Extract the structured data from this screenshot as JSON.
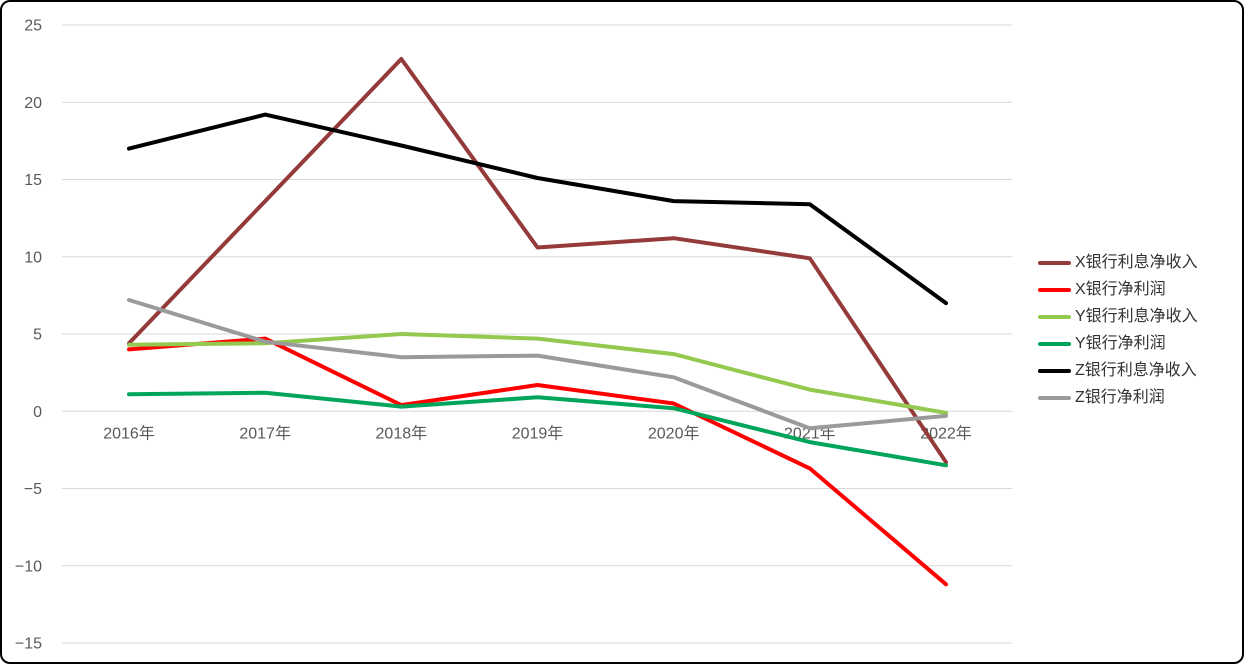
{
  "chart_data": {
    "type": "line",
    "title": "",
    "xlabel": "",
    "ylabel": "",
    "categories": [
      "2016年",
      "2017年",
      "2018年",
      "2019年",
      "2020年",
      "2021年",
      "2022年"
    ],
    "series": [
      {
        "name": "X银行利息净收入",
        "color": "#943A3A",
        "values": [
          4.4,
          13.6,
          22.8,
          10.6,
          11.2,
          9.9,
          -3.3
        ]
      },
      {
        "name": "X银行净利润",
        "color": "#FF0000",
        "values": [
          4.0,
          4.7,
          0.4,
          1.7,
          0.5,
          -3.7,
          -11.2
        ]
      },
      {
        "name": "Y银行利息净收入",
        "color": "#92C94E",
        "values": [
          4.3,
          4.4,
          5.0,
          4.7,
          3.7,
          1.4,
          -0.1
        ]
      },
      {
        "name": "Y银行净利润",
        "color": "#00A55C",
        "values": [
          1.1,
          1.2,
          0.3,
          0.9,
          0.2,
          -2.0,
          -3.5
        ]
      },
      {
        "name": "Z银行利息净收入",
        "color": "#000000",
        "values": [
          17.0,
          19.2,
          17.2,
          15.1,
          13.6,
          13.4,
          7.0
        ]
      },
      {
        "name": "Z银行净利润",
        "color": "#9A9A9A",
        "values": [
          7.2,
          4.5,
          3.5,
          3.6,
          2.2,
          -1.1,
          -0.3
        ]
      }
    ],
    "ylim": [
      -15,
      25
    ],
    "ytick_step": 5,
    "ytick_labels": [
      "25",
      "20",
      "15",
      "10",
      "5",
      "0",
      "−5",
      "−10",
      "−15"
    ],
    "grid": "horizontal",
    "legend_position": "right",
    "x_labels_position": "below-zero-line"
  },
  "styles": {
    "gridline_color": "#D9D9D9",
    "axis_label_color": "#595959",
    "legend_text_color": "#333333",
    "background": "#FFFFFF",
    "frame_border": "#000000"
  }
}
